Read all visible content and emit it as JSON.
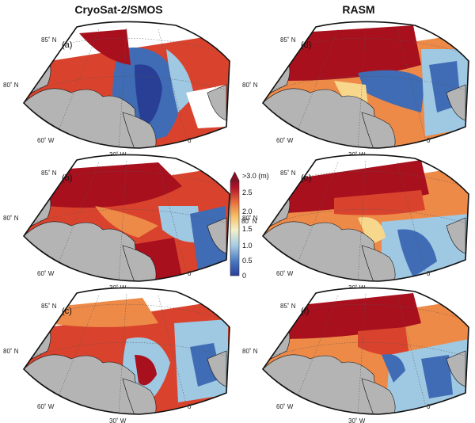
{
  "figure": {
    "column_titles": [
      "CryoSat-2/SMOS",
      "RASM"
    ],
    "grid_labels": {
      "lat_85": "85˚ N",
      "lat_80": "80˚ N",
      "lon_60w": "60˚ W",
      "lon_30w": "30˚ W",
      "lon_0": "0˚"
    },
    "panels": [
      {
        "id": "a",
        "label": "(a)",
        "column": "CryoSat-2/SMOS",
        "row": 1
      },
      {
        "id": "b",
        "label": "(b)",
        "column": "CryoSat-2/SMOS",
        "row": 2
      },
      {
        "id": "c",
        "label": "(c)",
        "column": "CryoSat-2/SMOS",
        "row": 3
      },
      {
        "id": "d",
        "label": "(d)",
        "column": "RASM",
        "row": 1
      },
      {
        "id": "e",
        "label": "(e)",
        "column": "RASM",
        "row": 2
      },
      {
        "id": "f",
        "label": "(f)",
        "column": "RASM",
        "row": 3
      }
    ],
    "colorbar": {
      "ticks": [
        "0",
        "0.5",
        "1.0",
        "1.5",
        "2.0",
        "2.5",
        ">3.0 (m)"
      ],
      "range": [
        0,
        3.0
      ],
      "colors": [
        "#2a3f9a",
        "#4a78c0",
        "#a8cde4",
        "#f3f0c8",
        "#f6c26a",
        "#e86a3a",
        "#b3172b",
        "#8a0f22"
      ]
    },
    "colors": {
      "land": "#b4b4b4",
      "outline": "#111111",
      "deep_red": "#a8101e",
      "red": "#d9432d",
      "orange": "#ee8a48",
      "yellow": "#f7d78c",
      "light_blue": "#9fc8e3",
      "blue": "#3f6cb5",
      "dark_blue": "#283f95"
    }
  }
}
